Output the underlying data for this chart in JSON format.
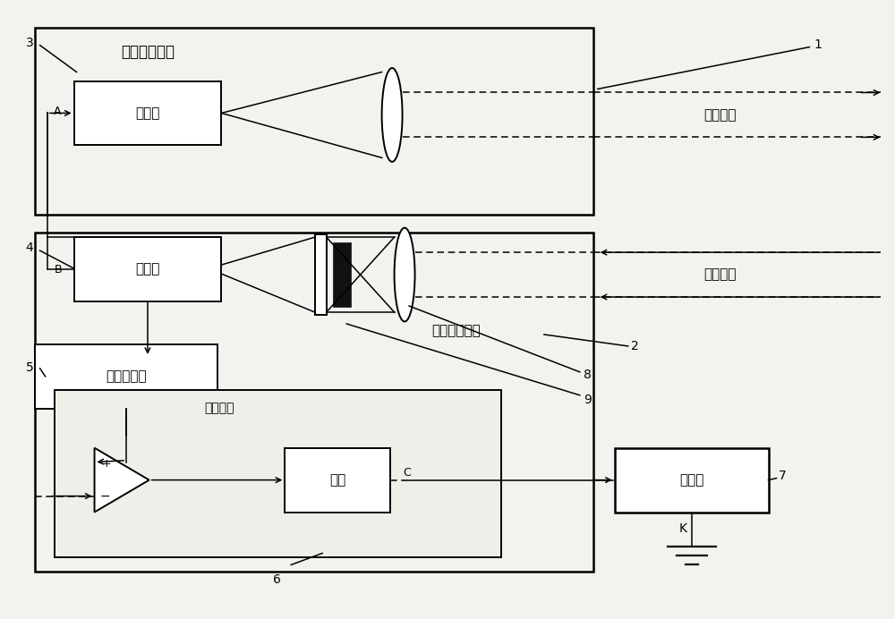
{
  "fig_width": 10.0,
  "fig_height": 6.92,
  "bg_color": "#f2f2ee",
  "labels": {
    "laser_unit": "激光发射单元",
    "laser": "激光器",
    "detect_unit": "激光探测单元",
    "detector": "探测器",
    "amplify": "放大与滤波",
    "receive": "接收模块",
    "shape": "整形",
    "timer": "计时器",
    "emit_beam": "发射光束",
    "return_beam": "回波光束",
    "n1": "1",
    "n2": "2",
    "n3": "3",
    "n4": "4",
    "n5": "5",
    "n6": "6",
    "n7": "7",
    "n8": "8",
    "n9": "9",
    "A": "A",
    "B": "B",
    "C": "C",
    "K": "K"
  }
}
